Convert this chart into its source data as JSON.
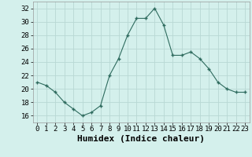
{
  "x": [
    0,
    1,
    2,
    3,
    4,
    5,
    6,
    7,
    8,
    9,
    10,
    11,
    12,
    13,
    14,
    15,
    16,
    17,
    18,
    19,
    20,
    21,
    22,
    23
  ],
  "y": [
    21.0,
    20.5,
    19.5,
    18.0,
    17.0,
    16.0,
    16.5,
    17.5,
    22.0,
    24.5,
    28.0,
    30.5,
    30.5,
    32.0,
    29.5,
    25.0,
    25.0,
    25.5,
    24.5,
    23.0,
    21.0,
    20.0,
    19.5,
    19.5
  ],
  "xlabel": "Humidex (Indice chaleur)",
  "ylim": [
    15.0,
    33.0
  ],
  "xlim": [
    -0.5,
    23.5
  ],
  "yticks": [
    16,
    18,
    20,
    22,
    24,
    26,
    28,
    30,
    32
  ],
  "xticks": [
    0,
    1,
    2,
    3,
    4,
    5,
    6,
    7,
    8,
    9,
    10,
    11,
    12,
    13,
    14,
    15,
    16,
    17,
    18,
    19,
    20,
    21,
    22,
    23
  ],
  "line_color": "#2e6b5e",
  "marker": "+",
  "bg_color": "#d4f0ec",
  "grid_color": "#b8d8d4",
  "xlabel_fontsize": 8,
  "tick_fontsize": 6.5
}
